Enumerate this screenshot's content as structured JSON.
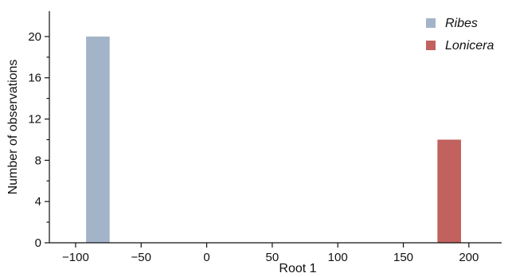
{
  "chart_data": {
    "type": "bar",
    "title": "",
    "xlabel": "Root 1",
    "ylabel": "Number of observations",
    "xlim": [
      -120,
      225
    ],
    "ylim": [
      0,
      22
    ],
    "xticks": [
      -100,
      -50,
      0,
      50,
      100,
      150,
      200
    ],
    "xtick_labels": [
      "−100",
      "−50",
      "0",
      "50",
      "100",
      "150",
      "200"
    ],
    "yticks": [
      0,
      4,
      8,
      12,
      16,
      20
    ],
    "yticks_minor": [
      2,
      6,
      10,
      14,
      18
    ],
    "ytick_labels": [
      "0",
      "4",
      "8",
      "12",
      "16",
      "20"
    ],
    "grid": false,
    "legend_position": "top-right",
    "series": [
      {
        "name": "Ribes",
        "color": "#a4b4c8",
        "bins": [
          {
            "x_start": -92,
            "x_end": -74,
            "value": 20
          }
        ]
      },
      {
        "name": "Lonicera",
        "color": "#c1625f",
        "bins": [
          {
            "x_start": 176,
            "x_end": 194,
            "value": 10
          }
        ]
      }
    ]
  }
}
